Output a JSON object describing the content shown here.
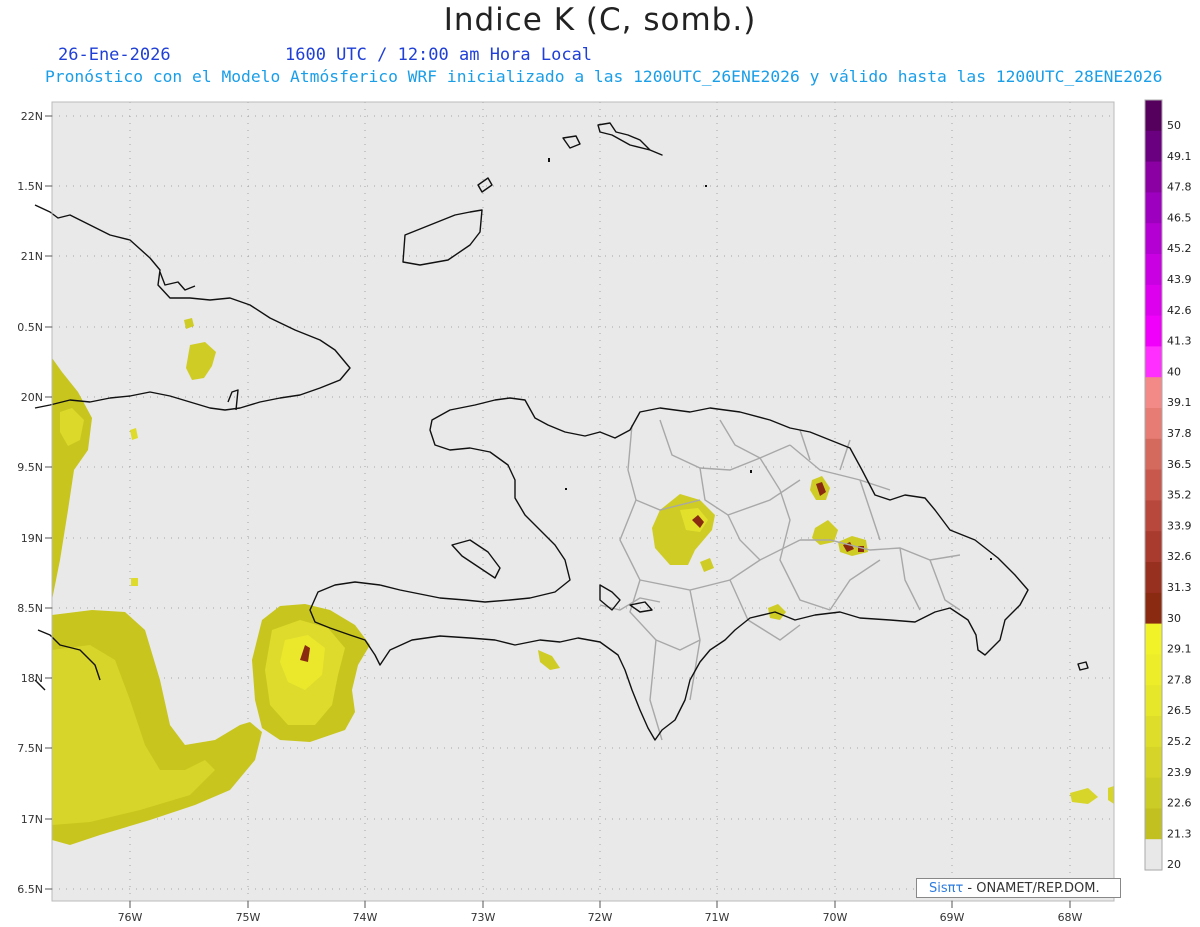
{
  "header": {
    "title": "Indice K (C, somb.)",
    "date": "26-Ene-2026",
    "time": "1600 UTC / 12:00 am Hora Local",
    "description": "Pronóstico con el Modelo Atmósferico WRF inicializado a las 1200UTC_26ENE2026 y válido hasta las  1200UTC_28ENE2026"
  },
  "map": {
    "lat_labels": [
      "22N",
      "1.5N",
      "21N",
      "0.5N",
      "20N",
      "9.5N",
      "19N",
      "8.5N",
      "18N",
      "7.5N",
      "17N",
      "6.5N"
    ],
    "lon_labels": [
      "76W",
      "75W",
      "74W",
      "73W",
      "72W",
      "71W",
      "70W",
      "69W",
      "68W"
    ]
  },
  "colorbar": {
    "labels": [
      "50",
      "49.1",
      "47.8",
      "46.5",
      "45.2",
      "43.9",
      "42.6",
      "41.3",
      "40",
      "39.1",
      "37.8",
      "36.5",
      "35.2",
      "33.9",
      "32.6",
      "31.3",
      "30",
      "29.1",
      "27.8",
      "26.5",
      "25.2",
      "23.9",
      "22.6",
      "21.3",
      "20"
    ],
    "colors": [
      "#56005e",
      "#6a0080",
      "#8a00a3",
      "#9e00c0",
      "#b400d2",
      "#c800e2",
      "#dc00ee",
      "#f000fa",
      "#ff30ff",
      "#f48a88",
      "#e67c74",
      "#d46a5e",
      "#c8584c",
      "#b8483c",
      "#a83a2e",
      "#98301f",
      "#8a2a10",
      "#f2f228",
      "#eded2a",
      "#e6e62a",
      "#dede2a",
      "#d6d428",
      "#cccc26",
      "#c2c020",
      "#e8e8e8"
    ]
  },
  "credit": {
    "brand": "Sisπτ",
    "org": " - ONAMET/REP.DOM."
  }
}
